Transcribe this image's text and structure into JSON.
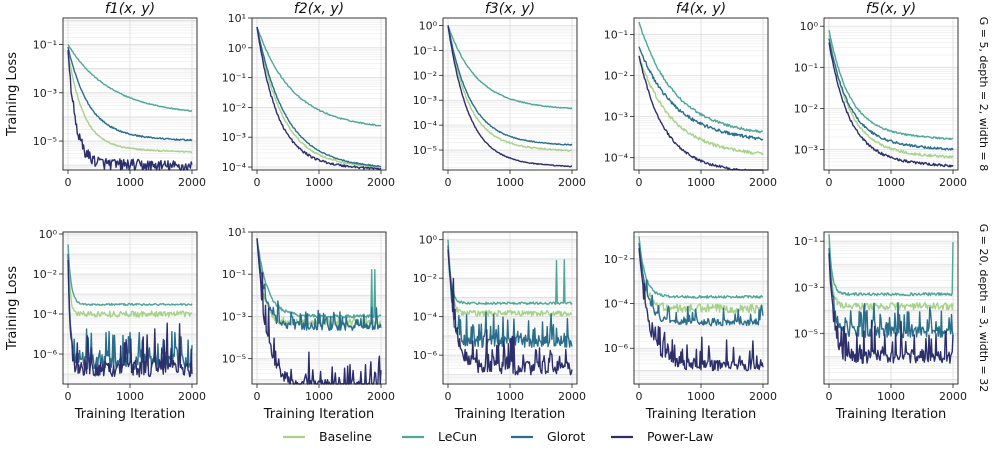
{
  "chart_data": {
    "type": "line",
    "xlabel": "Training Iteration",
    "ylabel": "Training Loss",
    "xlim": [
      0,
      2000
    ],
    "xticks": [
      0,
      1000,
      2000
    ],
    "yscale": "log",
    "colors": {
      "Baseline": "#a6d28a",
      "LeCun": "#4fa69a",
      "Glorot": "#2a6e8c",
      "Power-Law": "#2c2f6c"
    },
    "series_names": [
      "Baseline",
      "LeCun",
      "Glorot",
      "Power-Law"
    ],
    "legend_position": "bottom-center",
    "rows": [
      {
        "label": "G = 5, depth = 2, width = 8",
        "panels": [
          {
            "title": "f1(x, y)",
            "ylim_exp": [
              -6.2,
              0.1
            ],
            "ytick_exps": [
              -5,
              -3,
              -1
            ],
            "series": [
              {
                "name": "Baseline",
                "start": 0.05,
                "end": 5e-06,
                "k": 0.004,
                "noise": 0.03
              },
              {
                "name": "LeCun",
                "start": 0.1,
                "end": 0.00018,
                "k": 0.0015,
                "noise": 0.02
              },
              {
                "name": "Glorot",
                "start": 0.08,
                "end": 1.5e-05,
                "k": 0.003,
                "noise": 0.03
              },
              {
                "name": "Power-Law",
                "start": 0.06,
                "end": 1.2e-06,
                "k": 0.008,
                "noise": 0.25
              }
            ]
          },
          {
            "title": "f2(x, y)",
            "ylim_exp": [
              -4.1,
              1.0
            ],
            "ytick_exps": [
              -4,
              -3,
              -2,
              -1,
              0,
              1
            ],
            "series": [
              {
                "name": "Baseline",
                "start": 5,
                "end": 0.00013,
                "k": 0.0025,
                "noise": 0.03
              },
              {
                "name": "LeCun",
                "start": 5,
                "end": 0.0028,
                "k": 0.0018,
                "noise": 0.02
              },
              {
                "name": "Glorot",
                "start": 5,
                "end": 0.00013,
                "k": 0.0022,
                "noise": 0.02
              },
              {
                "name": "Power-Law",
                "start": 5,
                "end": 0.00012,
                "k": 0.003,
                "noise": 0.04
              }
            ]
          },
          {
            "title": "f3(x, y)",
            "ylim_exp": [
              -5.8,
              0.3
            ],
            "ytick_exps": [
              -5,
              -4,
              -3,
              -2,
              -1,
              0
            ],
            "series": [
              {
                "name": "Baseline",
                "start": 1,
                "end": 1.3e-05,
                "k": 0.003,
                "noise": 0.03
              },
              {
                "name": "LeCun",
                "start": 1,
                "end": 0.0006,
                "k": 0.0022,
                "noise": 0.02
              },
              {
                "name": "Glorot",
                "start": 1,
                "end": 2.2e-05,
                "k": 0.0028,
                "noise": 0.02
              },
              {
                "name": "Power-Law",
                "start": 1,
                "end": 3e-06,
                "k": 0.003,
                "noise": 0.02
              }
            ]
          },
          {
            "title": "f4(x, y)",
            "ylim_exp": [
              -4.3,
              -0.6
            ],
            "ytick_exps": [
              -4,
              -3,
              -2,
              -1
            ],
            "series": [
              {
                "name": "Baseline",
                "start": 0.03,
                "end": 0.00016,
                "k": 0.002,
                "noise": 0.04
              },
              {
                "name": "LeCun",
                "start": 0.2,
                "end": 0.0005,
                "k": 0.0018,
                "noise": 0.03
              },
              {
                "name": "Glorot",
                "start": 0.05,
                "end": 0.00035,
                "k": 0.0018,
                "noise": 0.04
              },
              {
                "name": "Power-Law",
                "start": 0.03,
                "end": 6e-05,
                "k": 0.0025,
                "noise": 0.03
              }
            ]
          },
          {
            "title": "f5(x, y)",
            "ylim_exp": [
              -3.5,
              0.2
            ],
            "ytick_exps": [
              -3,
              -2,
              -1,
              0
            ],
            "series": [
              {
                "name": "Baseline",
                "start": 0.6,
                "end": 0.0009,
                "k": 0.003,
                "noise": 0.03
              },
              {
                "name": "LeCun",
                "start": 0.8,
                "end": 0.0025,
                "k": 0.003,
                "noise": 0.02
              },
              {
                "name": "Glorot",
                "start": 0.5,
                "end": 0.0014,
                "k": 0.003,
                "noise": 0.03
              },
              {
                "name": "Power-Law",
                "start": 0.4,
                "end": 0.00055,
                "k": 0.003,
                "noise": 0.03
              }
            ]
          }
        ]
      },
      {
        "label": "G = 20, depth = 3, width = 32",
        "panels": [
          {
            "title": "",
            "ylim_exp": [
              -7.5,
              0.1
            ],
            "ytick_exps": [
              -6,
              -4,
              -2,
              0
            ],
            "series": [
              {
                "name": "Baseline",
                "start": 0.3,
                "end": 0.0001,
                "k": 0.03,
                "noise": 0.15
              },
              {
                "name": "LeCun",
                "start": 0.3,
                "end": 0.0003,
                "k": 0.02,
                "noise": 0.05
              },
              {
                "name": "Glorot",
                "start": 0.1,
                "end": 1e-06,
                "k": 0.03,
                "noise": 1.3
              },
              {
                "name": "Power-Law",
                "start": 0.05,
                "end": 5e-07,
                "k": 0.03,
                "noise": 1.4
              }
            ]
          },
          {
            "title": "",
            "ylim_exp": [
              -6.2,
              1.0
            ],
            "ytick_exps": [
              -5,
              -3,
              -1,
              1
            ],
            "series": [
              {
                "name": "Baseline",
                "start": 5,
                "end": 0.0005,
                "k": 0.01,
                "noise": 0.2
              },
              {
                "name": "LeCun",
                "start": 5,
                "end": 0.001,
                "k": 0.006,
                "noise": 0.08
              },
              {
                "name": "Glorot",
                "start": 5,
                "end": 0.0005,
                "k": 0.008,
                "noise": 0.6
              },
              {
                "name": "Power-Law",
                "start": 5,
                "end": 1e-06,
                "k": 0.006,
                "noise": 1.0
              }
            ]
          },
          {
            "title": "",
            "ylim_exp": [
              -7.5,
              0.4
            ],
            "ytick_exps": [
              -6,
              -4,
              -2,
              0
            ],
            "series": [
              {
                "name": "Baseline",
                "start": 1,
                "end": 0.00015,
                "k": 0.02,
                "noise": 0.15
              },
              {
                "name": "LeCun",
                "start": 1,
                "end": 0.0005,
                "k": 0.02,
                "noise": 0.06
              },
              {
                "name": "Glorot",
                "start": 0.5,
                "end": 1e-05,
                "k": 0.015,
                "noise": 1.0
              },
              {
                "name": "Power-Law",
                "start": 0.3,
                "end": 5e-07,
                "k": 0.008,
                "noise": 1.2
              }
            ]
          },
          {
            "title": "",
            "ylim_exp": [
              -7.6,
              -0.8
            ],
            "ytick_exps": [
              -6,
              -4,
              -2
            ],
            "series": [
              {
                "name": "Baseline",
                "start": 0.05,
                "end": 6e-05,
                "k": 0.01,
                "noise": 0.2
              },
              {
                "name": "LeCun",
                "start": 0.1,
                "end": 0.0002,
                "k": 0.01,
                "noise": 0.06
              },
              {
                "name": "Glorot",
                "start": 0.05,
                "end": 2e-05,
                "k": 0.008,
                "noise": 0.5
              },
              {
                "name": "Power-Law",
                "start": 0.03,
                "end": 3e-07,
                "k": 0.006,
                "noise": 0.8
              }
            ]
          },
          {
            "title": "",
            "ylim_exp": [
              -7.2,
              -0.6
            ],
            "ytick_exps": [
              -5,
              -3,
              -1
            ],
            "series": [
              {
                "name": "Baseline",
                "start": 0.1,
                "end": 0.00015,
                "k": 0.02,
                "noise": 0.15
              },
              {
                "name": "LeCun",
                "start": 0.2,
                "end": 0.0005,
                "k": 0.02,
                "noise": 0.06
              },
              {
                "name": "Glorot",
                "start": 0.05,
                "end": 2e-05,
                "k": 0.015,
                "noise": 0.8
              },
              {
                "name": "Power-Law",
                "start": 0.03,
                "end": 2e-06,
                "k": 0.015,
                "noise": 1.0
              }
            ]
          }
        ]
      }
    ]
  }
}
